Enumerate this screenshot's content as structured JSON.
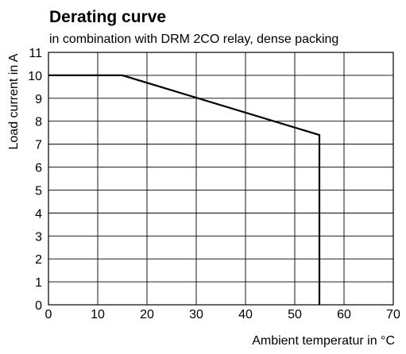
{
  "colors": {
    "line": "#000000",
    "grid": "#000000",
    "frame": "#000000",
    "background": "#ffffff"
  },
  "chart_data": {
    "type": "line",
    "title": "Derating curve",
    "subtitle": "in combination with DRM 2CO relay, dense packing",
    "xlabel": "Ambient temperatur in °C",
    "ylabel": "Load  current in A",
    "xlim": [
      0,
      70
    ],
    "ylim": [
      0,
      11
    ],
    "xticks": [
      0,
      10,
      20,
      30,
      40,
      50,
      60,
      70
    ],
    "yticks": [
      0,
      1,
      2,
      3,
      4,
      5,
      6,
      7,
      8,
      9,
      10,
      11
    ],
    "grid": true,
    "legend": "none",
    "series": [
      {
        "x": [
          0,
          15,
          55,
          55
        ],
        "y": [
          10,
          10,
          7.4,
          0
        ]
      }
    ]
  }
}
